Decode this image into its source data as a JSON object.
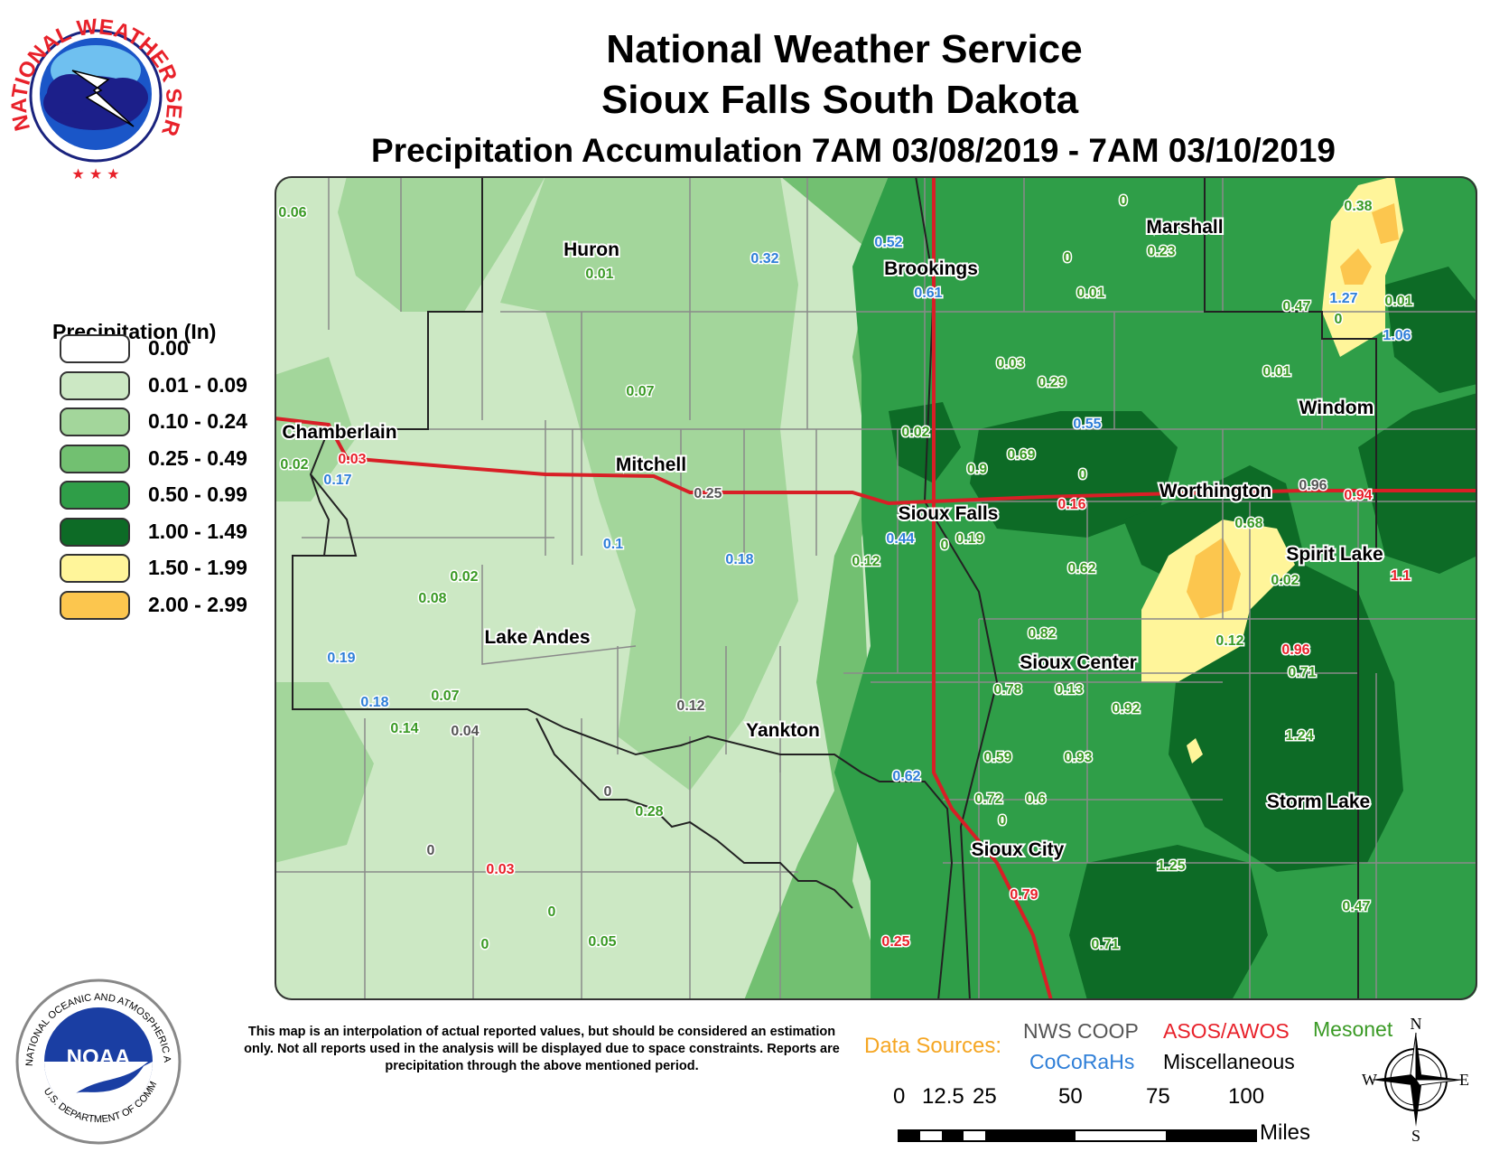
{
  "header": {
    "title_line1": "National Weather Service",
    "title_line2": "Sioux Falls South Dakota",
    "title_line3": "Precipitation Accumulation 7AM 03/08/2019 - 7AM 03/10/2019"
  },
  "logos": {
    "nws_text": "NATIONAL WEATHER SERVICE",
    "noaa_ring_text": "NATIONAL OCEANIC AND ATMOSPHERIC ADMINISTRATION",
    "noaa_bottom_text": "U.S. DEPARTMENT OF COMMERCE",
    "noaa_center": "NOAA"
  },
  "legend": {
    "title": "Precipitation (In)",
    "items": [
      {
        "label": "0.00",
        "color": "#ffffff"
      },
      {
        "label": "0.01 - 0.09",
        "color": "#cce8c4"
      },
      {
        "label": "0.10 - 0.24",
        "color": "#a3d69b"
      },
      {
        "label": "0.25 - 0.49",
        "color": "#72c071"
      },
      {
        "label": "0.50 - 0.99",
        "color": "#2f9e48"
      },
      {
        "label": "1.00 - 1.49",
        "color": "#0d6b26"
      },
      {
        "label": "1.50 - 1.99",
        "color": "#fff59a"
      },
      {
        "label": "2.00 - 2.99",
        "color": "#fcc64e"
      }
    ]
  },
  "map": {
    "cities": [
      {
        "name": "Huron"
      },
      {
        "name": "Brookings"
      },
      {
        "name": "Marshall"
      },
      {
        "name": "Windom"
      },
      {
        "name": "Chamberlain"
      },
      {
        "name": "Mitchell"
      },
      {
        "name": "Sioux Falls"
      },
      {
        "name": "Worthington"
      },
      {
        "name": "Spirit Lake"
      },
      {
        "name": "Lake Andes"
      },
      {
        "name": "Sioux Center"
      },
      {
        "name": "Yankton"
      },
      {
        "name": "Storm Lake"
      },
      {
        "name": "Sioux City"
      }
    ],
    "values": [
      {
        "v": "0.06",
        "src": "mesonet"
      },
      {
        "v": "0.01",
        "src": "mesonet"
      },
      {
        "v": "0.32",
        "src": "cocorahs"
      },
      {
        "v": "0.52",
        "src": "cocorahs"
      },
      {
        "v": "0.61",
        "src": "cocorahs"
      },
      {
        "v": "0",
        "src": "mesonet"
      },
      {
        "v": "0.23",
        "src": "mesonet"
      },
      {
        "v": "0",
        "src": "mesonet"
      },
      {
        "v": "0.01",
        "src": "mesonet"
      },
      {
        "v": "0.38",
        "src": "mesonet"
      },
      {
        "v": "0.47",
        "src": "mesonet"
      },
      {
        "v": "1.27",
        "src": "cocorahs"
      },
      {
        "v": "0.01",
        "src": "mesonet"
      },
      {
        "v": "0",
        "src": "mesonet"
      },
      {
        "v": "1.06",
        "src": "cocorahs"
      },
      {
        "v": "0.07",
        "src": "mesonet"
      },
      {
        "v": "0.03",
        "src": "mesonet"
      },
      {
        "v": "0.29",
        "src": "mesonet"
      },
      {
        "v": "0.01",
        "src": "mesonet"
      },
      {
        "v": "0.02",
        "src": "mesonet"
      },
      {
        "v": "0.55",
        "src": "cocorahs"
      },
      {
        "v": "0.69",
        "src": "mesonet"
      },
      {
        "v": "0.9",
        "src": "mesonet"
      },
      {
        "v": "0",
        "src": "mesonet"
      },
      {
        "v": "0.02",
        "src": "mesonet"
      },
      {
        "v": "0.03",
        "src": "asos"
      },
      {
        "v": "0.17",
        "src": "cocorahs"
      },
      {
        "v": "0.25",
        "src": "coop"
      },
      {
        "v": "0.16",
        "src": "asos"
      },
      {
        "v": "0.96",
        "src": "coop"
      },
      {
        "v": "0.94",
        "src": "asos"
      },
      {
        "v": "0.44",
        "src": "cocorahs"
      },
      {
        "v": "0",
        "src": "mesonet"
      },
      {
        "v": "0.19",
        "src": "mesonet"
      },
      {
        "v": "0.68",
        "src": "mesonet"
      },
      {
        "v": "0.1",
        "src": "cocorahs"
      },
      {
        "v": "0.18",
        "src": "cocorahs"
      },
      {
        "v": "0.12",
        "src": "mesonet"
      },
      {
        "v": "0.62",
        "src": "mesonet"
      },
      {
        "v": "0.02",
        "src": "mesonet"
      },
      {
        "v": "1.1",
        "src": "asos"
      },
      {
        "v": "0.02",
        "src": "mesonet"
      },
      {
        "v": "0.08",
        "src": "mesonet"
      },
      {
        "v": "0.82",
        "src": "mesonet"
      },
      {
        "v": "0.12",
        "src": "mesonet"
      },
      {
        "v": "0.96",
        "src": "asos"
      },
      {
        "v": "0.19",
        "src": "cocorahs"
      },
      {
        "v": "0.71",
        "src": "mesonet"
      },
      {
        "v": "0.78",
        "src": "mesonet"
      },
      {
        "v": "0.13",
        "src": "mesonet"
      },
      {
        "v": "0.92",
        "src": "mesonet"
      },
      {
        "v": "0.18",
        "src": "cocorahs"
      },
      {
        "v": "0.07",
        "src": "mesonet"
      },
      {
        "v": "0.12",
        "src": "coop"
      },
      {
        "v": "0.14",
        "src": "mesonet"
      },
      {
        "v": "0.04",
        "src": "coop"
      },
      {
        "v": "1.24",
        "src": "mesonet"
      },
      {
        "v": "0.59",
        "src": "mesonet"
      },
      {
        "v": "0.93",
        "src": "mesonet"
      },
      {
        "v": "0.62",
        "src": "cocorahs"
      },
      {
        "v": "0.72",
        "src": "mesonet"
      },
      {
        "v": "0.6",
        "src": "mesonet"
      },
      {
        "v": "0",
        "src": "mesonet"
      },
      {
        "v": "0",
        "src": "coop"
      },
      {
        "v": "0.28",
        "src": "mesonet"
      },
      {
        "v": "0",
        "src": "coop"
      },
      {
        "v": "0.03",
        "src": "asos"
      },
      {
        "v": "1.25",
        "src": "mesonet"
      },
      {
        "v": "0.79",
        "src": "asos"
      },
      {
        "v": "0",
        "src": "mesonet"
      },
      {
        "v": "0.47",
        "src": "mesonet"
      },
      {
        "v": "0",
        "src": "mesonet"
      },
      {
        "v": "0.05",
        "src": "mesonet"
      },
      {
        "v": "0.25",
        "src": "asos"
      },
      {
        "v": "0.71",
        "src": "mesonet"
      }
    ]
  },
  "disclaimer": "This map is an interpolation of actual reported values, but should be considered an estimation only. Not all reports used in the analysis will be displayed due to space constraints. Reports are precipitation through the above mentioned period.",
  "data_sources": {
    "label": "Data Sources:",
    "nws_coop": "NWS COOP",
    "asos": "ASOS/AWOS",
    "mesonet": "Mesonet",
    "cocorahs": "CoCoRaHs",
    "misc": "Miscellaneous",
    "colors": {
      "coop": "#555555",
      "asos": "#e8212a",
      "mesonet": "#3a9a25",
      "cocorahs": "#2f7fd8",
      "misc": "#000000"
    }
  },
  "scale_bar": {
    "ticks": [
      "0",
      "12.5",
      "25",
      "50",
      "75",
      "100"
    ],
    "unit": "Miles"
  },
  "compass": {
    "n": "N",
    "s": "S",
    "e": "E",
    "w": "W"
  }
}
